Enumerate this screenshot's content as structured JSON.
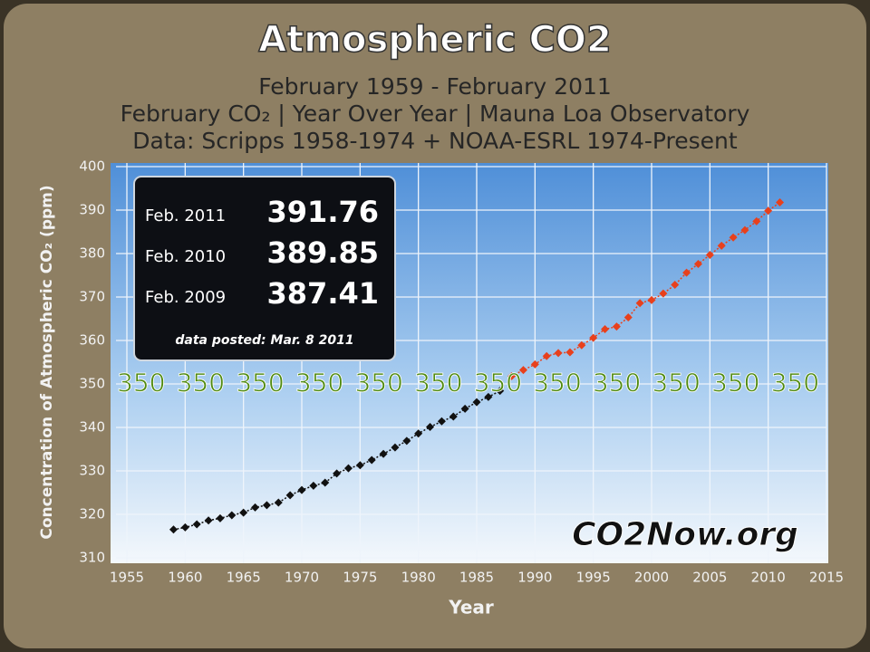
{
  "chart_data": {
    "type": "scatter",
    "title": "Atmospheric CO2",
    "subtitles": [
      "February 1959 - February 2011",
      "February CO₂   |  Year Over Year  |  Mauna Loa Observatory",
      "Data:  Scripps 1958-1974 + NOAA-ESRL 1974-Present"
    ],
    "x_label": "Year",
    "y_label": "Concentration of  Atmospheric CO₂ (ppm)",
    "x": [
      1959,
      1960,
      1961,
      1962,
      1963,
      1964,
      1965,
      1966,
      1967,
      1968,
      1969,
      1970,
      1971,
      1972,
      1973,
      1974,
      1975,
      1976,
      1977,
      1978,
      1979,
      1980,
      1981,
      1982,
      1983,
      1984,
      1985,
      1986,
      1987,
      1988,
      1989,
      1990,
      1991,
      1992,
      1993,
      1994,
      1995,
      1996,
      1997,
      1998,
      1999,
      2000,
      2001,
      2002,
      2003,
      2004,
      2005,
      2006,
      2007,
      2008,
      2009,
      2010,
      2011
    ],
    "series": [
      {
        "color": "#111111",
        "values": [
          316.5,
          317.0,
          317.7,
          318.6,
          319.1,
          319.8,
          320.4,
          321.6,
          322.1,
          322.7,
          324.4,
          325.6,
          326.6,
          327.3,
          329.4,
          330.6,
          331.3,
          332.5,
          333.9,
          335.4,
          336.9,
          338.6,
          340.1,
          341.4,
          342.5,
          344.3,
          345.8,
          347.0,
          348.4,
          null,
          null,
          null,
          null,
          null,
          null,
          null,
          null,
          null,
          null,
          null,
          null,
          null,
          null,
          null,
          null,
          null,
          null,
          null,
          null,
          null,
          null,
          null,
          null
        ]
      },
      {
        "color": "#e8401c",
        "values": [
          null,
          null,
          null,
          null,
          null,
          null,
          null,
          null,
          null,
          null,
          null,
          null,
          null,
          null,
          null,
          null,
          null,
          null,
          null,
          null,
          null,
          null,
          null,
          null,
          null,
          null,
          null,
          null,
          null,
          351.8,
          353.2,
          354.5,
          356.4,
          357.1,
          357.3,
          358.9,
          360.6,
          362.6,
          363.2,
          365.3,
          368.6,
          369.3,
          370.8,
          372.8,
          375.6,
          377.6,
          379.7,
          381.8,
          383.7,
          385.4,
          387.41,
          389.85,
          391.76
        ]
      }
    ],
    "xlim": [
      1955,
      2015
    ],
    "xticks": [
      1955,
      1960,
      1965,
      1970,
      1975,
      1980,
      1985,
      1990,
      1995,
      2000,
      2005,
      2010,
      2015
    ],
    "ylim": [
      310,
      400
    ],
    "yticks": [
      310,
      320,
      330,
      340,
      350,
      360,
      370,
      380,
      390,
      400
    ],
    "grid": true,
    "target": {
      "y": 350,
      "texts": [
        "350",
        "350",
        "350",
        "350",
        "350",
        "350",
        "350",
        "350",
        "350",
        "350",
        "350",
        "350"
      ]
    },
    "inset": {
      "rows": [
        {
          "label": "Feb. 2011",
          "value": 391.76
        },
        {
          "label": "Feb. 2010",
          "value": 389.85
        },
        {
          "label": "Feb. 2009",
          "value": 387.41
        }
      ],
      "note": "data posted:  Mar. 8  2011"
    },
    "watermark": "CO2Now.org"
  }
}
